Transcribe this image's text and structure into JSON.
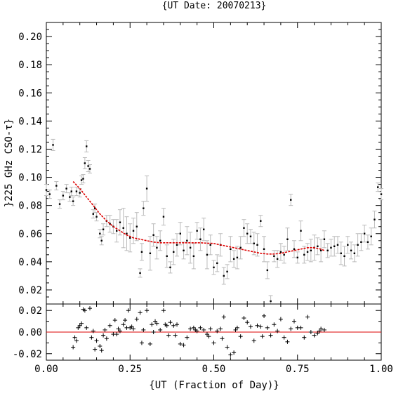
{
  "chart_data": [
    {
      "type": "scatter",
      "title": "{UT Date: 20070213}",
      "xlabel": "",
      "ylabel": "}225 GHz CSO-τ}",
      "xlim": [
        0.0,
        1.0
      ],
      "ylim": [
        0.01,
        0.21
      ],
      "yticks": [
        "0.02",
        "0.04",
        "0.06",
        "0.08",
        "0.10",
        "0.12",
        "0.14",
        "0.16",
        "0.18",
        "0.20"
      ],
      "ytick_values": [
        0.02,
        0.04,
        0.06,
        0.08,
        0.1,
        0.12,
        0.14,
        0.16,
        0.18,
        0.2
      ],
      "grid": false,
      "colors": {
        "points": "#000000",
        "errorbars": "#bbbbbb",
        "fit": "#dd0000"
      },
      "series": [
        {
          "type": "scatter-errorbar",
          "x": [
            0.0,
            0.01,
            0.02,
            0.03,
            0.04,
            0.05,
            0.06,
            0.07,
            0.075,
            0.08,
            0.09,
            0.1,
            0.105,
            0.11,
            0.115,
            0.12,
            0.125,
            0.13,
            0.14,
            0.145,
            0.15,
            0.16,
            0.165,
            0.17,
            0.18,
            0.19,
            0.2,
            0.21,
            0.22,
            0.23,
            0.24,
            0.25,
            0.26,
            0.27,
            0.28,
            0.285,
            0.29,
            0.3,
            0.31,
            0.32,
            0.33,
            0.34,
            0.35,
            0.36,
            0.37,
            0.38,
            0.39,
            0.4,
            0.41,
            0.42,
            0.43,
            0.44,
            0.45,
            0.46,
            0.47,
            0.48,
            0.49,
            0.5,
            0.51,
            0.52,
            0.53,
            0.54,
            0.55,
            0.56,
            0.57,
            0.58,
            0.59,
            0.6,
            0.61,
            0.62,
            0.63,
            0.64,
            0.65,
            0.66,
            0.67,
            0.68,
            0.69,
            0.7,
            0.71,
            0.72,
            0.73,
            0.74,
            0.75,
            0.76,
            0.77,
            0.78,
            0.79,
            0.8,
            0.81,
            0.82,
            0.83,
            0.84,
            0.85,
            0.86,
            0.87,
            0.88,
            0.89,
            0.9,
            0.91,
            0.92,
            0.93,
            0.94,
            0.95,
            0.96,
            0.97,
            0.98,
            0.99,
            1.0
          ],
          "y": [
            0.091,
            0.088,
            0.123,
            0.094,
            0.081,
            0.087,
            0.092,
            0.086,
            0.09,
            0.083,
            0.09,
            0.089,
            0.098,
            0.099,
            0.11,
            0.122,
            0.108,
            0.106,
            0.074,
            0.078,
            0.072,
            0.06,
            0.055,
            0.063,
            0.069,
            0.067,
            0.065,
            0.062,
            0.068,
            0.064,
            0.06,
            0.057,
            0.062,
            0.065,
            0.032,
            0.047,
            0.078,
            0.092,
            0.046,
            0.059,
            0.05,
            0.055,
            0.072,
            0.044,
            0.036,
            0.047,
            0.052,
            0.06,
            0.048,
            0.055,
            0.05,
            0.044,
            0.062,
            0.056,
            0.063,
            0.045,
            0.052,
            0.036,
            0.039,
            0.052,
            0.03,
            0.033,
            0.049,
            0.042,
            0.043,
            0.05,
            0.064,
            0.06,
            0.058,
            0.053,
            0.052,
            0.069,
            0.049,
            0.034,
            0.012,
            0.044,
            0.042,
            0.047,
            0.045,
            0.056,
            0.084,
            0.049,
            0.043,
            0.062,
            0.045,
            0.047,
            0.048,
            0.05,
            0.051,
            0.048,
            0.056,
            0.048,
            0.05,
            0.051,
            0.052,
            0.046,
            0.044,
            0.052,
            0.048,
            0.046,
            0.052,
            0.054,
            0.06,
            0.054,
            0.058,
            0.07,
            0.093,
            0.088
          ],
          "err": [
            0.004,
            0.003,
            0.004,
            0.003,
            0.003,
            0.003,
            0.003,
            0.003,
            0.003,
            0.003,
            0.003,
            0.003,
            0.003,
            0.003,
            0.004,
            0.004,
            0.004,
            0.003,
            0.003,
            0.003,
            0.003,
            0.003,
            0.003,
            0.004,
            0.004,
            0.006,
            0.005,
            0.008,
            0.009,
            0.014,
            0.012,
            0.01,
            0.009,
            0.01,
            0.003,
            0.006,
            0.005,
            0.009,
            0.012,
            0.008,
            0.008,
            0.007,
            0.006,
            0.008,
            0.004,
            0.009,
            0.008,
            0.008,
            0.006,
            0.01,
            0.011,
            0.009,
            0.006,
            0.008,
            0.008,
            0.01,
            0.007,
            0.005,
            0.006,
            0.008,
            0.006,
            0.005,
            0.009,
            0.006,
            0.008,
            0.008,
            0.006,
            0.007,
            0.005,
            0.008,
            0.008,
            0.004,
            0.009,
            0.006,
            0.004,
            0.004,
            0.006,
            0.006,
            0.006,
            0.008,
            0.004,
            0.006,
            0.004,
            0.007,
            0.006,
            0.006,
            0.008,
            0.009,
            0.006,
            0.008,
            0.006,
            0.005,
            0.006,
            0.007,
            0.006,
            0.008,
            0.007,
            0.006,
            0.006,
            0.006,
            0.008,
            0.006,
            0.006,
            0.005,
            0.006,
            0.006,
            0.003,
            0.004
          ]
        },
        {
          "type": "line",
          "x": [
            0.08,
            0.1,
            0.12,
            0.14,
            0.16,
            0.18,
            0.2,
            0.22,
            0.24,
            0.26,
            0.28,
            0.3,
            0.32,
            0.34,
            0.36,
            0.38,
            0.4,
            0.42,
            0.44,
            0.46,
            0.48,
            0.5,
            0.52,
            0.54,
            0.56,
            0.58,
            0.6,
            0.62,
            0.64,
            0.66,
            0.68,
            0.7,
            0.72,
            0.74,
            0.76,
            0.78,
            0.8,
            0.82,
            0.83
          ],
          "y": [
            0.097,
            0.092,
            0.086,
            0.08,
            0.074,
            0.069,
            0.065,
            0.062,
            0.059,
            0.057,
            0.056,
            0.055,
            0.054,
            0.0535,
            0.0535,
            0.0535,
            0.0535,
            0.0535,
            0.0535,
            0.0535,
            0.0532,
            0.053,
            0.052,
            0.051,
            0.05,
            0.049,
            0.048,
            0.047,
            0.046,
            0.0455,
            0.0455,
            0.046,
            0.047,
            0.048,
            0.049,
            0.05,
            0.05,
            0.049,
            0.048
          ]
        }
      ]
    },
    {
      "type": "scatter",
      "title": "",
      "xlabel": "{UT (Fraction of Day)}",
      "ylabel": "",
      "xlim": [
        0.0,
        1.0
      ],
      "ylim": [
        -0.026,
        0.026
      ],
      "xticks": [
        "0.00",
        "0.25",
        "0.50",
        "0.75",
        "1.00"
      ],
      "xtick_values": [
        0.0,
        0.25,
        0.5,
        0.75,
        1.0
      ],
      "yticks": [
        "0.02",
        "0.00",
        "-0.02"
      ],
      "ytick_values": [
        0.02,
        0.0,
        -0.02
      ],
      "zero_line_color": "#dd0000",
      "series": [
        {
          "type": "residual",
          "x": [
            0.08,
            0.085,
            0.09,
            0.095,
            0.1,
            0.105,
            0.11,
            0.115,
            0.12,
            0.13,
            0.135,
            0.14,
            0.145,
            0.15,
            0.16,
            0.165,
            0.17,
            0.175,
            0.18,
            0.19,
            0.2,
            0.205,
            0.21,
            0.215,
            0.22,
            0.23,
            0.235,
            0.24,
            0.245,
            0.25,
            0.255,
            0.26,
            0.27,
            0.28,
            0.285,
            0.29,
            0.3,
            0.31,
            0.315,
            0.32,
            0.325,
            0.33,
            0.34,
            0.35,
            0.355,
            0.36,
            0.365,
            0.37,
            0.38,
            0.385,
            0.39,
            0.4,
            0.41,
            0.42,
            0.43,
            0.44,
            0.445,
            0.45,
            0.46,
            0.47,
            0.48,
            0.485,
            0.49,
            0.5,
            0.51,
            0.52,
            0.525,
            0.53,
            0.54,
            0.55,
            0.56,
            0.565,
            0.57,
            0.58,
            0.59,
            0.6,
            0.61,
            0.62,
            0.63,
            0.64,
            0.645,
            0.65,
            0.66,
            0.67,
            0.68,
            0.69,
            0.7,
            0.71,
            0.72,
            0.73,
            0.74,
            0.75,
            0.76,
            0.77,
            0.78,
            0.79,
            0.8,
            0.81,
            0.815,
            0.82,
            0.83
          ],
          "y": [
            -0.014,
            -0.005,
            -0.008,
            0.004,
            0.006,
            0.008,
            0.021,
            0.02,
            0.004,
            0.022,
            -0.005,
            0.001,
            -0.016,
            -0.008,
            -0.013,
            -0.017,
            -0.003,
            0.002,
            -0.006,
            0.006,
            -0.002,
            0.011,
            -0.002,
            0.003,
            0.001,
            0.007,
            0.011,
            0.004,
            0.02,
            0.004,
            0.005,
            0.003,
            0.012,
            0.018,
            -0.01,
            0.002,
            0.02,
            -0.011,
            0.007,
            0.0,
            0.01,
            0.008,
            0.002,
            0.02,
            0.007,
            0.006,
            -0.003,
            0.009,
            0.006,
            -0.003,
            0.007,
            -0.011,
            -0.012,
            -0.005,
            0.003,
            0.004,
            0.002,
            0.001,
            0.004,
            0.002,
            -0.002,
            -0.004,
            0.003,
            -0.01,
            0.001,
            0.003,
            -0.006,
            0.014,
            -0.014,
            -0.021,
            -0.019,
            0.002,
            0.004,
            -0.004,
            0.013,
            0.009,
            0.005,
            -0.008,
            0.006,
            0.005,
            -0.004,
            0.015,
            0.004,
            -0.003,
            0.007,
            0.001,
            0.012,
            -0.005,
            -0.009,
            0.003,
            0.01,
            0.004,
            0.004,
            -0.005,
            0.014,
            0.0,
            -0.003,
            -0.001,
            0.001,
            0.003,
            0.002
          ]
        }
      ]
    }
  ]
}
